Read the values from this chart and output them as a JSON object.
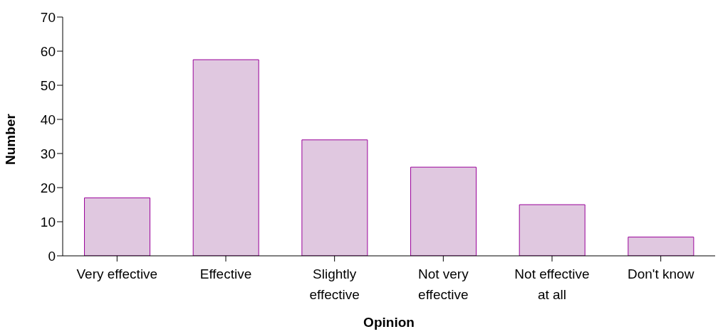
{
  "chart_data": {
    "type": "bar",
    "xlabel": "Opinion",
    "ylabel": "Number",
    "categories": [
      "Very effective",
      "Effective",
      "Slightly effective",
      "Not very effective",
      "Not effective at all",
      "Don't know"
    ],
    "values": [
      17,
      57.5,
      34,
      26,
      15,
      5.5
    ],
    "color": "#e0c8e0",
    "ylim": [
      0,
      70
    ],
    "yticks": [
      0,
      10,
      20,
      30,
      40,
      50,
      60,
      70
    ],
    "grid": false,
    "legend": false
  }
}
